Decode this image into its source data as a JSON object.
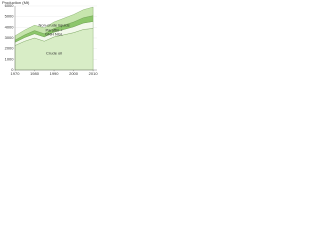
{
  "chart_data": {
    "type": "stacked-area",
    "y_label": "Production (Mt)",
    "x": [
      1970,
      1975,
      1980,
      1985,
      1990,
      1995,
      2000,
      2005,
      2010
    ],
    "series": [
      {
        "name": "Crude oil",
        "color": "#d8edc6",
        "values": [
          2300,
          2700,
          3000,
          2700,
          3100,
          3300,
          3500,
          3800,
          3900
        ]
      },
      {
        "name": "GNH NGL",
        "color": "#f3f9ec",
        "values": [
          300,
          350,
          400,
          400,
          450,
          500,
          550,
          600,
          650
        ]
      },
      {
        "name": "Paraffin +",
        "color": "#8cc66b",
        "values": [
          200,
          250,
          300,
          300,
          350,
          400,
          450,
          500,
          550
        ]
      },
      {
        "name": "Non-crude liquids",
        "color": "#c6e5ad",
        "values": [
          400,
          450,
          500,
          550,
          600,
          650,
          700,
          750,
          800
        ]
      }
    ],
    "xlim": [
      1970,
      2012
    ],
    "xticks": [
      1970,
      1980,
      1990,
      2000,
      2010
    ],
    "ylim": [
      0,
      6000
    ],
    "yticks": [
      0,
      1000,
      2000,
      3000,
      4000,
      5000,
      6000
    ],
    "grid": true
  }
}
